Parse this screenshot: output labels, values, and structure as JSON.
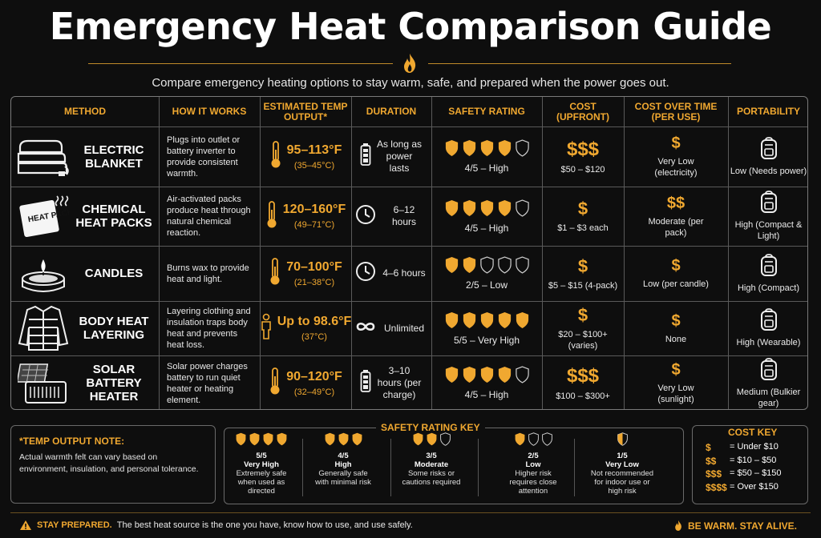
{
  "title": "Emergency Heat Comparison Guide",
  "subtitle": "Compare emergency heating options to stay warm, safe, and prepared when the power goes out.",
  "colors": {
    "accent": "#f0a830",
    "background": "#0e0e0e",
    "text": "#ffffff"
  },
  "headers": {
    "method": "METHOD",
    "how": "HOW IT WORKS",
    "temp": "ESTIMATED TEMP OUTPUT*",
    "duration": "DURATION",
    "safety": "SAFETY RATING",
    "cost": "COST (UPFRONT)",
    "cost_time": "COST OVER TIME (PER USE)",
    "portability": "PORTABILITY"
  },
  "rows": [
    {
      "icon": "blanket-icon",
      "method": "ELECTRIC BLANKET",
      "how": "Plugs into outlet or battery inverter to provide consistent warmth.",
      "temp_icon": "thermometer-icon",
      "temp": "95–113°F",
      "temp_c": "(35–45°C)",
      "duration_icon": "battery-icon",
      "duration": "As long as power lasts",
      "safety": 4,
      "safety_label": "4/5 – High",
      "cost_symbol": "$$$",
      "cost": "$50 – $120",
      "cost_time_symbol": "$",
      "cost_time": "Very Low (electricity)",
      "portability": "Low (Needs power)"
    },
    {
      "icon": "heat-pack-icon",
      "heat_pack_text": "HEAT PACK",
      "method": "CHEMICAL HEAT PACKS",
      "how": "Air-activated packs produce heat through natural chemical reaction.",
      "temp_icon": "thermometer-icon",
      "temp": "120–160°F",
      "temp_c": "(49–71°C)",
      "duration_icon": "clock-icon",
      "duration": "6–12 hours",
      "safety": 4,
      "safety_label": "4/5 – High",
      "cost_symbol": "$",
      "cost": "$1 – $3 each",
      "cost_time_symbol": "$$",
      "cost_time": "Moderate (per pack)",
      "portability": "High (Compact & Light)"
    },
    {
      "icon": "candle-icon",
      "method": "CANDLES",
      "how": "Burns wax to provide heat and light.",
      "temp_icon": "thermometer-icon",
      "temp": "70–100°F",
      "temp_c": "(21–38°C)",
      "duration_icon": "clock-icon",
      "duration": "4–6 hours",
      "safety": 2,
      "safety_label": "2/5 – Low",
      "cost_symbol": "$",
      "cost": "$5 – $15 (4-pack)",
      "cost_time_symbol": "$",
      "cost_time": "Low (per candle)",
      "portability": "High (Compact)"
    },
    {
      "icon": "jacket-icon",
      "method": "BODY HEAT LAYERING",
      "how": "Layering clothing and insulation traps body heat and prevents heat loss.",
      "temp_icon": "person-icon",
      "temp": "Up to 98.6°F",
      "temp_c": "(37°C)",
      "duration_icon": "infinity-icon",
      "duration": "Unlimited",
      "safety": 5,
      "safety_label": "5/5 – Very High",
      "cost_symbol": "$",
      "cost": "$20 – $100+ (varies)",
      "cost_time_symbol": "$",
      "cost_time": "None",
      "portability": "High (Wearable)"
    },
    {
      "icon": "solar-heater-icon",
      "method": "SOLAR BATTERY HEATER",
      "how": "Solar power charges battery to run quiet heater or heating element.",
      "temp_icon": "thermometer-icon",
      "temp": "90–120°F",
      "temp_c": "(32–49°C)",
      "duration_icon": "battery-icon",
      "duration": "3–10 hours (per charge)",
      "safety": 4,
      "safety_label": "4/5 – High",
      "cost_symbol": "$$$",
      "cost": "$100 – $300+",
      "cost_time_symbol": "$",
      "cost_time": "Very Low (sunlight)",
      "portability": "Medium (Bulkier gear)"
    }
  ],
  "note": {
    "title": "*TEMP OUTPUT NOTE:",
    "body": "Actual warmth felt can vary based on environment, insulation, and personal tolerance."
  },
  "safety_key": {
    "title": "SAFETY RATING KEY",
    "items": [
      {
        "filled": 4,
        "total": 4,
        "score": "5/5",
        "label": "Very High",
        "desc": "Extremely safe when used as directed"
      },
      {
        "filled": 3,
        "total": 3,
        "score": "4/5",
        "label": "High",
        "desc": "Generally safe with minimal risk"
      },
      {
        "filled": 2,
        "total": 3,
        "score": "3/5",
        "label": "Moderate",
        "desc": "Some risks or cautions required"
      },
      {
        "filled": 1,
        "total": 3,
        "score": "2/5",
        "label": "Low",
        "desc": "Higher risk requires close attention"
      },
      {
        "filled": 0.5,
        "total": 1,
        "score": "1/5",
        "label": "Very Low",
        "desc": "Not recommended for indoor use or high risk"
      }
    ]
  },
  "cost_key": {
    "title": "COST KEY",
    "items": [
      {
        "symbol": "$",
        "text": "= Under $10"
      },
      {
        "symbol": "$$",
        "text": "= $10 – $50"
      },
      {
        "symbol": "$$$",
        "text": "= $50 – $150"
      },
      {
        "symbol": "$$$$",
        "text": "= Over $150"
      }
    ]
  },
  "footer": {
    "left_strong": "STAY PREPARED.",
    "left_text": "The best heat source is the one you have, know how to use, and use safely.",
    "right": "BE WARM. STAY ALIVE."
  }
}
